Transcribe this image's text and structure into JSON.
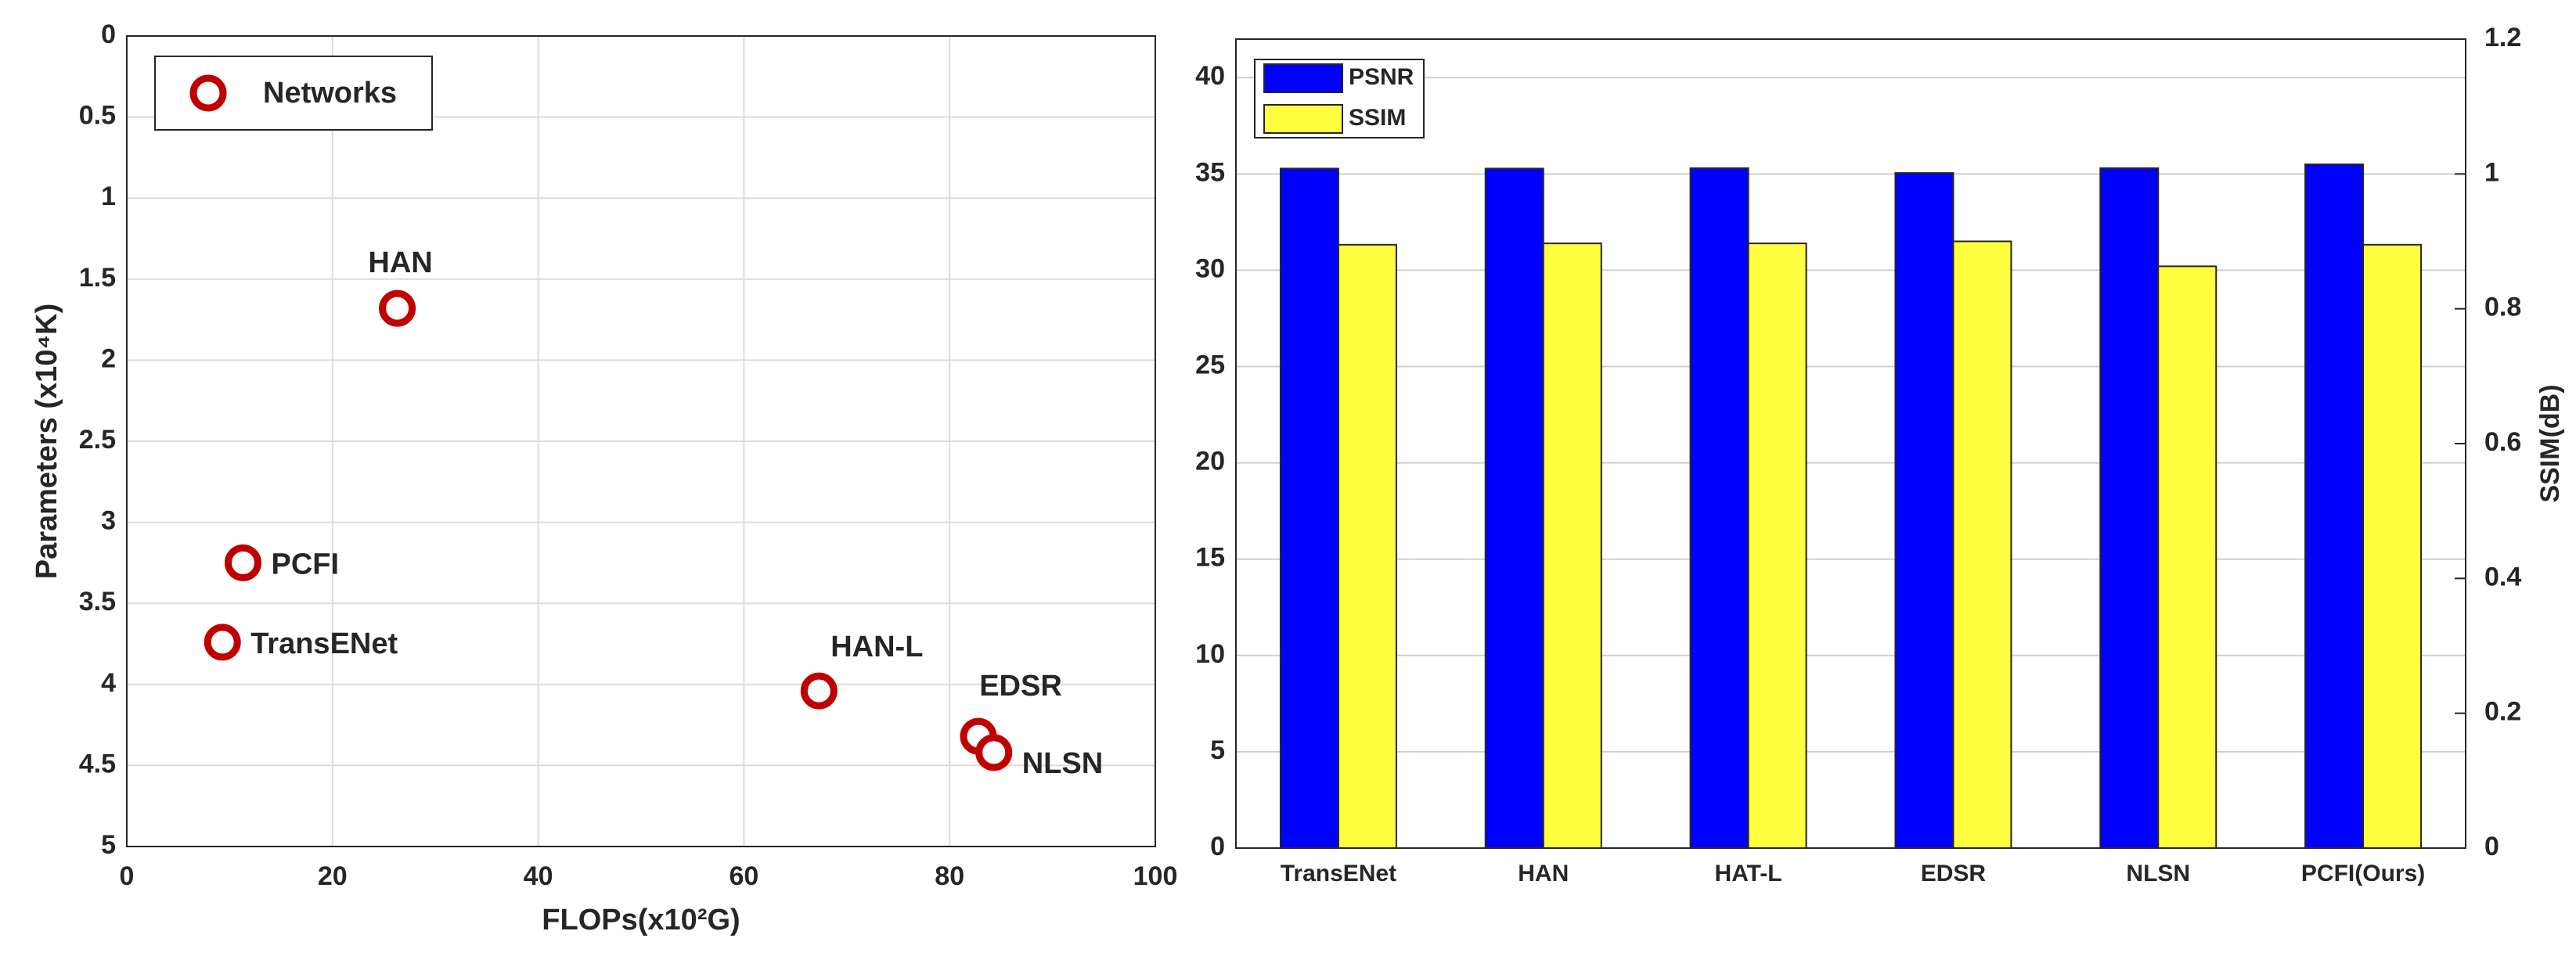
{
  "chart_data": [
    {
      "type": "scatter",
      "xlabel": "FLOPs(x10²G)",
      "ylabel": "Parameters (x10⁴K)",
      "series": [
        {
          "name": "Networks",
          "color": "#c00000",
          "x": [
            26.3,
            11.3,
            9.3,
            67.3,
            82.8,
            84.3
          ],
          "values": [
            1.68,
            3.25,
            3.74,
            4.04,
            4.32,
            4.42
          ],
          "labels": [
            "HAN",
            "PCFI",
            "TransENet",
            "HAN-L",
            "EDSR",
            "NLSN"
          ]
        }
      ],
      "xlim": [
        0,
        100
      ],
      "xticks": [
        0,
        20,
        40,
        60,
        80,
        100
      ],
      "ylim": [
        0,
        5
      ],
      "y_reversed": true,
      "yticks": [
        0,
        0.5,
        1,
        1.5,
        2,
        2.5,
        3,
        3.5,
        4,
        4.5,
        5
      ],
      "grid": true,
      "legend": "top-left"
    },
    {
      "type": "bar",
      "y2label": "SSIM(dB)",
      "categories": [
        "TransENet",
        "HAN",
        "HAT-L",
        "EDSR",
        "NLSN",
        "PCFI(Ours)"
      ],
      "series": [
        {
          "name": "PSNR",
          "color": "#0000ff",
          "values": [
            35.28,
            35.28,
            35.3,
            35.05,
            35.3,
            35.5
          ]
        },
        {
          "name": "SSIM",
          "color": "#ffff40",
          "axis": "y2",
          "values": [
            0.895,
            0.897,
            0.897,
            0.9,
            0.863,
            0.895
          ]
        }
      ],
      "ylim": [
        0,
        42
      ],
      "yticks": [
        0,
        5,
        10,
        15,
        20,
        25,
        30,
        35,
        40
      ],
      "y2lim": [
        0,
        1.2
      ],
      "y2ticks": [
        0,
        0.2,
        0.4,
        0.6,
        0.8,
        1,
        1.2
      ],
      "grid": true,
      "legend": "top-left"
    }
  ]
}
